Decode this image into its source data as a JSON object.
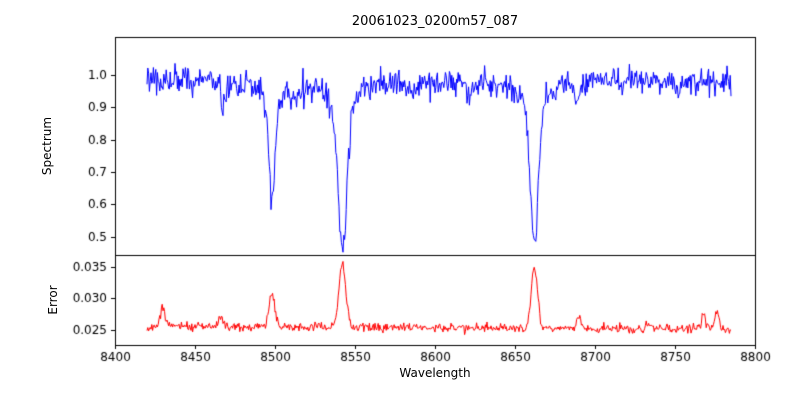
{
  "figure": {
    "background": "#ffffff",
    "axis_color": "#000000"
  },
  "chart_data": {
    "type": "line",
    "title": "20061023_0200m57_087",
    "xlabel": "Wavelength",
    "x_axis": {
      "min": 8400,
      "max": 8800,
      "ticks": [
        8400,
        8450,
        8500,
        8550,
        8600,
        8650,
        8700,
        8750,
        8800
      ],
      "tick_labels": [
        "8400",
        "8450",
        "8500",
        "8550",
        "8600",
        "8650",
        "8700",
        "8750",
        "8800"
      ]
    },
    "x_range": [
      8420,
      8785
    ],
    "panels": [
      {
        "name": "spectrum",
        "ylabel": "Spectrum",
        "ylim": [
          0.444,
          1.117
        ],
        "yticks": [
          0.5,
          0.6,
          0.7,
          0.8,
          0.9,
          1.0
        ],
        "ytick_labels": [
          "0.5",
          "0.6",
          "0.7",
          "0.8",
          "0.9",
          "1.0"
        ],
        "color": "#0000ff",
        "continuum": 0.985,
        "noise_sigma": 0.021,
        "seed": 20061023,
        "n_points": 731,
        "absorption_lines": [
          {
            "center": 8498.0,
            "depth": 0.36,
            "width": 1.8
          },
          {
            "center": 8542.1,
            "depth": 0.52,
            "width": 2.6
          },
          {
            "center": 8662.1,
            "depth": 0.5,
            "width": 2.4
          },
          {
            "center": 8468.0,
            "depth": 0.06,
            "width": 1.4
          },
          {
            "center": 8514.0,
            "depth": 0.05,
            "width": 1.4
          },
          {
            "center": 8583.0,
            "depth": 0.04,
            "width": 1.3
          },
          {
            "center": 8621.0,
            "depth": 0.05,
            "width": 1.3
          },
          {
            "center": 8688.5,
            "depth": 0.06,
            "width": 1.4
          },
          {
            "center": 8717.0,
            "depth": 0.04,
            "width": 1.2
          },
          {
            "center": 8752.0,
            "depth": 0.04,
            "width": 1.2
          }
        ]
      },
      {
        "name": "error",
        "ylabel": "Error",
        "ylim": [
          0.0226,
          0.0369
        ],
        "yticks": [
          0.025,
          0.03,
          0.035
        ],
        "ytick_labels": [
          "0.025",
          "0.030",
          "0.035"
        ],
        "color": "#ff0000",
        "baseline": [
          0.0256,
          0.0251
        ],
        "noise_sigma": 0.00035,
        "seed": 87,
        "n_points": 731,
        "peaks": [
          {
            "center": 8430.0,
            "amp": 0.0028,
            "width": 1.8
          },
          {
            "center": 8466.0,
            "amp": 0.0012,
            "width": 1.5
          },
          {
            "center": 8498.0,
            "amp": 0.0052,
            "width": 1.8
          },
          {
            "center": 8542.1,
            "amp": 0.01,
            "width": 2.2
          },
          {
            "center": 8662.1,
            "amp": 0.0096,
            "width": 2.0
          },
          {
            "center": 8690.0,
            "amp": 0.0016,
            "width": 1.5
          },
          {
            "center": 8735.0,
            "amp": 0.001,
            "width": 1.4
          },
          {
            "center": 8768.0,
            "amp": 0.0022,
            "width": 1.4
          },
          {
            "center": 8776.0,
            "amp": 0.003,
            "width": 1.4
          }
        ]
      }
    ]
  }
}
